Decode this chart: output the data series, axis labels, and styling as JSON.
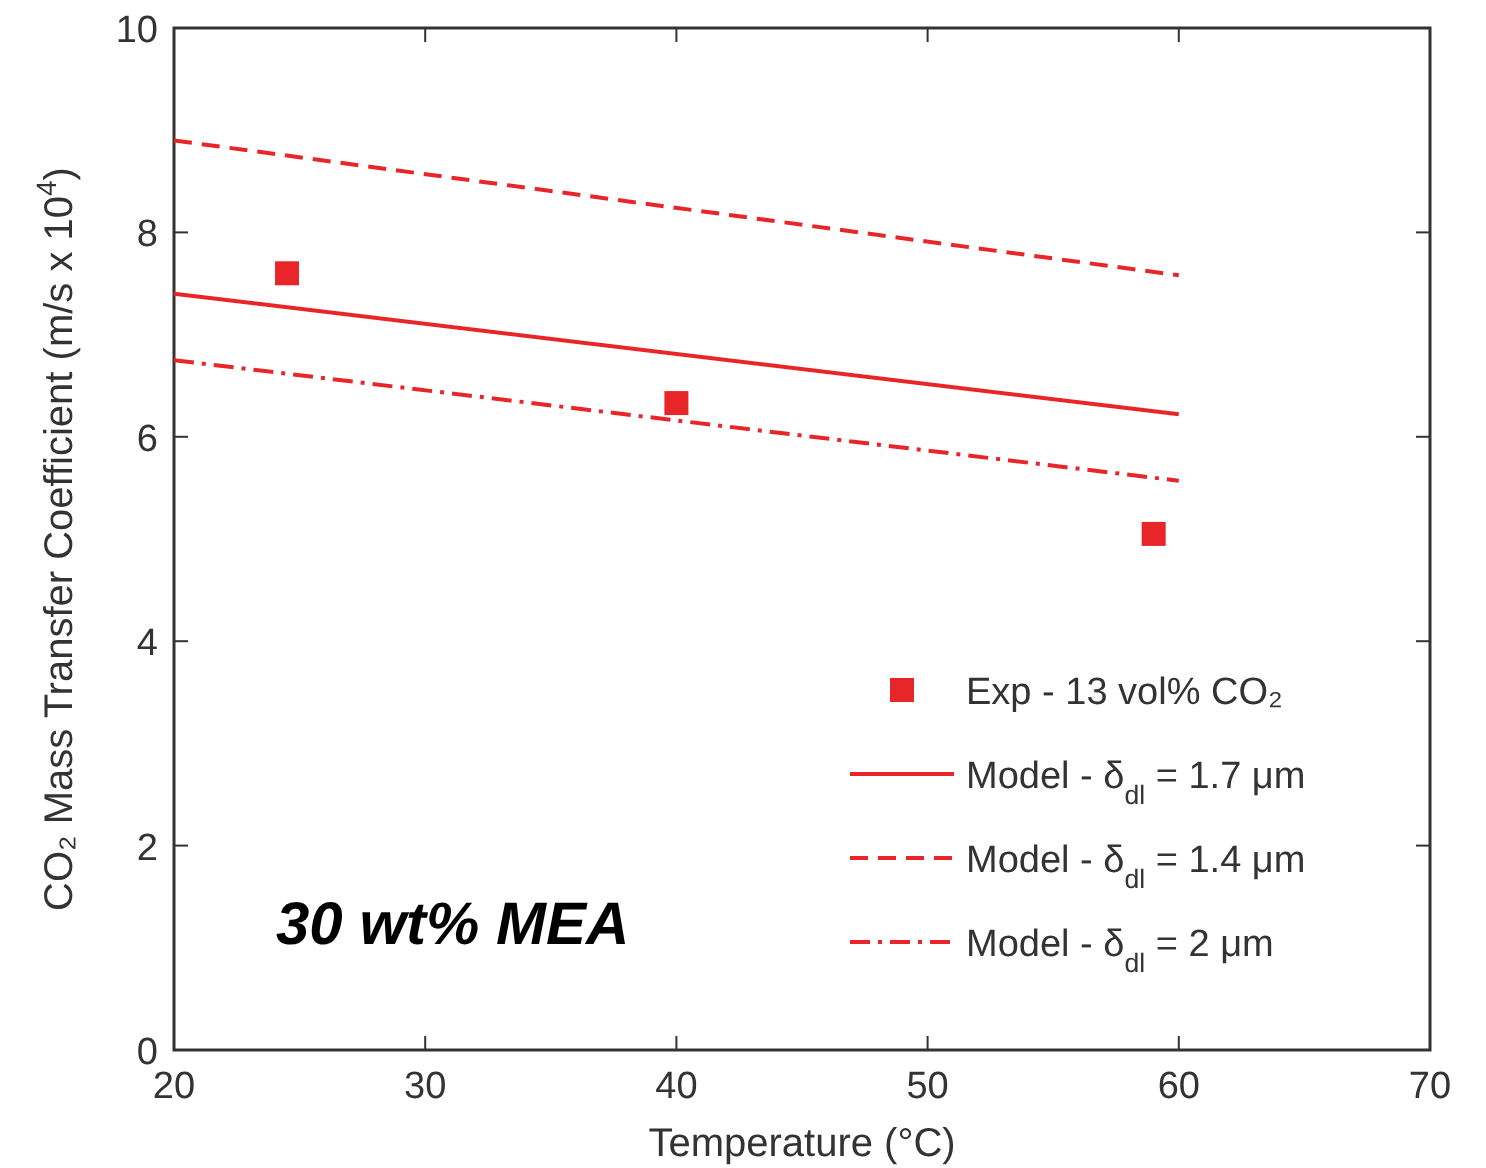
{
  "chart_data": {
    "type": "line",
    "xlabel": "Temperature (°C)",
    "ylabel": "CO₂ Mass Transfer Coefficient (m/s x 10$^{4}$)",
    "xlim": [
      20,
      70
    ],
    "ylim": [
      0,
      10
    ],
    "xticks": [
      20,
      30,
      40,
      50,
      60,
      70
    ],
    "yticks": [
      0,
      2,
      4,
      6,
      8,
      10
    ],
    "grid": false,
    "legend": "bottom right",
    "annotations": [
      "30 wt% MEA"
    ],
    "series": [
      {
        "name": "Exp - 13 vol% CO₂",
        "type": "scatter",
        "marker": "square",
        "color": "#e8262a",
        "x": [
          24.5,
          40,
          59
        ],
        "values": [
          7.6,
          6.33,
          5.05
        ]
      },
      {
        "name": "Model - δ$_{dl}$ = 1.7 μm",
        "line_style": "solid",
        "color": "#e8262a",
        "x": [
          20,
          60
        ],
        "values": [
          7.4,
          6.22
        ]
      },
      {
        "name": "Model - δ$_{dl}$ = 1.4 μm",
        "line_style": "dashed",
        "color": "#e8262a",
        "x": [
          20,
          60
        ],
        "values": [
          8.9,
          7.58
        ]
      },
      {
        "name": "Model - δ$_{dl}$ = 2 μm",
        "line_style": "dashdot",
        "color": "#e8262a",
        "x": [
          20,
          60
        ],
        "values": [
          6.75,
          5.57
        ]
      }
    ]
  }
}
